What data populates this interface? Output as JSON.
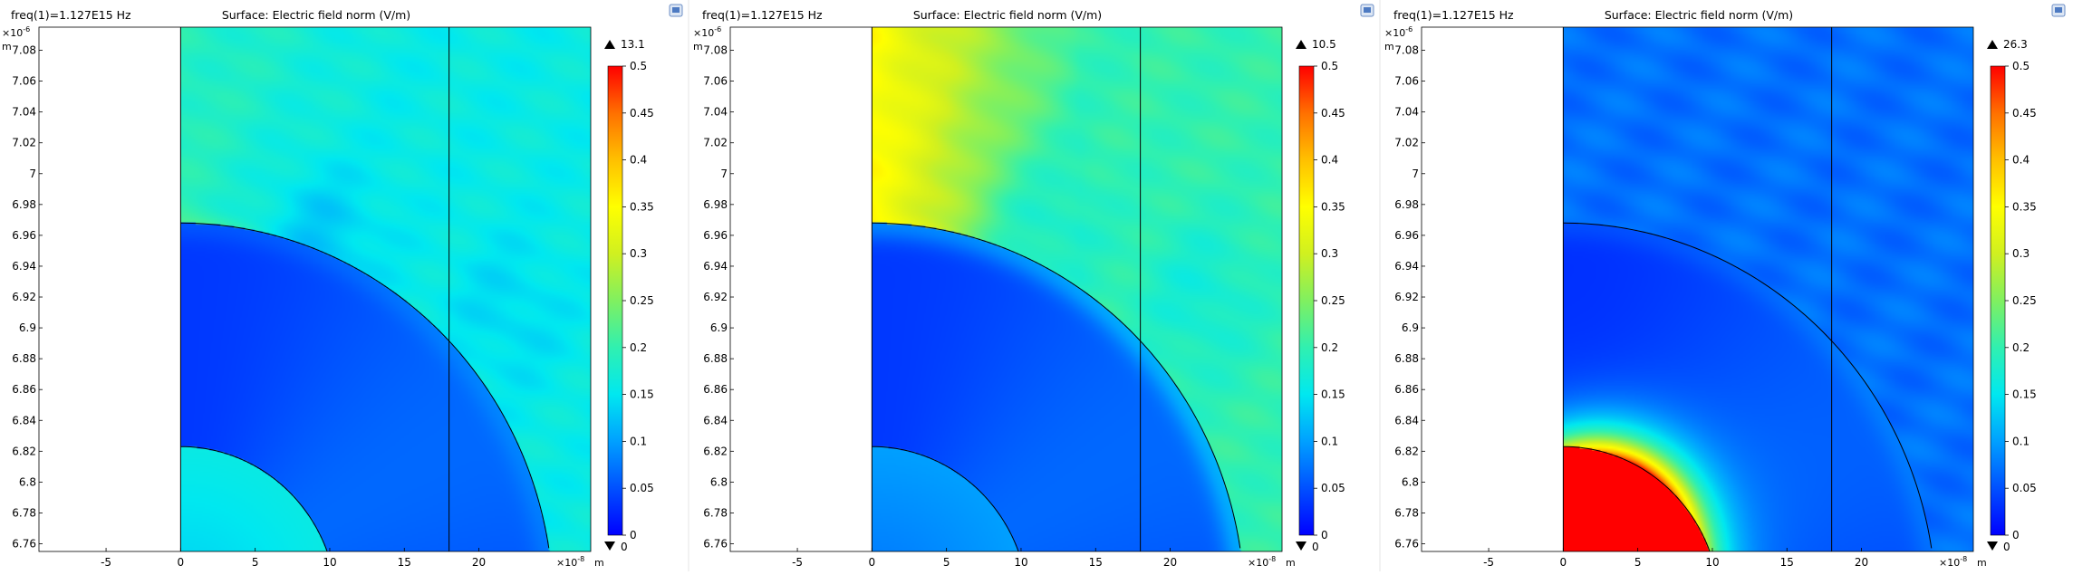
{
  "chart_data": [
    {
      "type": "heatmap",
      "header": "freq(1)=1.127E15 Hz",
      "title": "Surface: Electric field norm (V/m)",
      "x_exponent": "×10",
      "x_exponent_power": "-8",
      "x_unit": "m",
      "y_exponent": "×10",
      "y_exponent_power": "-6",
      "y_unit": "m",
      "xlim": [
        -9.5,
        27.5
      ],
      "ylim": [
        6.755,
        7.095
      ],
      "x_ticks": [
        -5,
        0,
        5,
        10,
        15,
        20
      ],
      "x_tick_labels": [
        "-5",
        "0",
        "5",
        "10",
        "15",
        "20"
      ],
      "y_ticks": [
        6.76,
        6.78,
        6.8,
        6.82,
        6.84,
        6.86,
        6.88,
        6.9,
        6.92,
        6.94,
        6.96,
        6.98,
        7.0,
        7.02,
        7.04,
        7.06,
        7.08
      ],
      "y_tick_labels": [
        "6.76",
        "6.78",
        "6.8",
        "6.82",
        "6.84",
        "6.86",
        "6.88",
        "6.9",
        "6.92",
        "6.94",
        "6.96",
        "6.98",
        "7",
        "7.02",
        "7.04",
        "7.06",
        "7.08"
      ],
      "colorbar": {
        "max_marker": "13.1",
        "min_marker": "0",
        "range": [
          0,
          0.5
        ],
        "ticks": [
          0,
          0.05,
          0.1,
          0.15,
          0.2,
          0.25,
          0.3,
          0.35,
          0.4,
          0.45,
          0.5
        ],
        "tick_labels": [
          "0",
          "0.05",
          "0.1",
          "0.15",
          "0.2",
          "0.25",
          "0.3",
          "0.35",
          "0.4",
          "0.45",
          "0.5"
        ]
      },
      "colormap": [
        "#0000ff",
        "#0050ff",
        "#00a0ff",
        "#00e8f0",
        "#30f0b0",
        "#80f060",
        "#d0f020",
        "#ffff00",
        "#ffc000",
        "#ff7000",
        "#ff0000"
      ],
      "geometry": {
        "domain_x_start": 0,
        "inner_arc_radius": 10.5,
        "outer_arc_radius": 25.0,
        "arc_center_y": 6.718,
        "vertical_line_x": 18
      },
      "field": {
        "outside_base": 0.16,
        "shell_base": 0.05,
        "core_base": 0.16,
        "hotspot": {
          "x": 0.5,
          "y": 6.945,
          "peak": 0.33
        },
        "diagonal_gradient": 0.03,
        "dark_spots": [
          {
            "x": 9,
            "y": 6.96,
            "depth": 0.04
          },
          {
            "x": 22,
            "y": 6.91,
            "depth": 0.02
          }
        ]
      }
    },
    {
      "type": "heatmap",
      "header": "freq(1)=1.127E15 Hz",
      "title": "Surface: Electric field norm (V/m)",
      "x_exponent": "×10",
      "x_exponent_power": "-8",
      "x_unit": "m",
      "y_exponent": "×10",
      "y_exponent_power": "-6",
      "y_unit": "m",
      "xlim": [
        -9.5,
        27.5
      ],
      "ylim": [
        6.755,
        7.095
      ],
      "x_ticks": [
        -5,
        0,
        5,
        10,
        15,
        20
      ],
      "x_tick_labels": [
        "-5",
        "0",
        "5",
        "10",
        "15",
        "20"
      ],
      "y_ticks": [
        6.76,
        6.78,
        6.8,
        6.82,
        6.84,
        6.86,
        6.88,
        6.9,
        6.92,
        6.94,
        6.96,
        6.98,
        7.0,
        7.02,
        7.04,
        7.06,
        7.08
      ],
      "y_tick_labels": [
        "6.76",
        "6.78",
        "6.8",
        "6.82",
        "6.84",
        "6.86",
        "6.88",
        "6.9",
        "6.92",
        "6.94",
        "6.96",
        "6.98",
        "7",
        "7.02",
        "7.04",
        "7.06",
        "7.08"
      ],
      "colorbar": {
        "max_marker": "10.5",
        "min_marker": "0",
        "range": [
          0,
          0.5
        ],
        "ticks": [
          0,
          0.05,
          0.1,
          0.15,
          0.2,
          0.25,
          0.3,
          0.35,
          0.4,
          0.45,
          0.5
        ],
        "tick_labels": [
          "0",
          "0.05",
          "0.1",
          "0.15",
          "0.2",
          "0.25",
          "0.3",
          "0.35",
          "0.4",
          "0.45",
          "0.5"
        ]
      },
      "colormap": [
        "#0000ff",
        "#0050ff",
        "#00a0ff",
        "#00e8f0",
        "#30f0b0",
        "#80f060",
        "#d0f020",
        "#ffff00",
        "#ffc000",
        "#ff7000",
        "#ff0000"
      ],
      "geometry": {
        "domain_x_start": 0,
        "inner_arc_radius": 10.5,
        "outer_arc_radius": 25.0,
        "arc_center_y": 6.718,
        "vertical_line_x": 18
      },
      "field": {
        "outside_base": 0.2,
        "shell_base": 0.05,
        "core_base": 0.1,
        "hotspot": {
          "x": 0.5,
          "y": 6.94,
          "peak": 0.45
        },
        "diagonal_gradient": 0.15,
        "dark_spots": [
          {
            "x": 10,
            "y": 6.97,
            "depth": 0.05
          },
          {
            "x": 22,
            "y": 6.92,
            "depth": 0.03
          }
        ]
      }
    },
    {
      "type": "heatmap",
      "header": "freq(1)=1.127E15 Hz",
      "title": "Surface: Electric field norm (V/m)",
      "x_exponent": "×10",
      "x_exponent_power": "-8",
      "x_unit": "m",
      "y_exponent": "×10",
      "y_exponent_power": "-6",
      "y_unit": "m",
      "xlim": [
        -9.5,
        27.5
      ],
      "ylim": [
        6.755,
        7.095
      ],
      "x_ticks": [
        -5,
        0,
        5,
        10,
        15,
        20
      ],
      "x_tick_labels": [
        "-5",
        "0",
        "5",
        "10",
        "15",
        "20"
      ],
      "y_ticks": [
        6.76,
        6.78,
        6.8,
        6.82,
        6.84,
        6.86,
        6.88,
        6.9,
        6.92,
        6.94,
        6.96,
        6.98,
        7.0,
        7.02,
        7.04,
        7.06,
        7.08
      ],
      "y_tick_labels": [
        "6.76",
        "6.78",
        "6.8",
        "6.82",
        "6.84",
        "6.86",
        "6.88",
        "6.9",
        "6.92",
        "6.94",
        "6.96",
        "6.98",
        "7",
        "7.02",
        "7.04",
        "7.06",
        "7.08"
      ],
      "colorbar": {
        "max_marker": "26.3",
        "min_marker": "0",
        "range": [
          0,
          0.5
        ],
        "ticks": [
          0,
          0.05,
          0.1,
          0.15,
          0.2,
          0.25,
          0.3,
          0.35,
          0.4,
          0.45,
          0.5
        ],
        "tick_labels": [
          "0",
          "0.05",
          "0.1",
          "0.15",
          "0.2",
          "0.25",
          "0.3",
          "0.35",
          "0.4",
          "0.45",
          "0.5"
        ]
      },
      "colormap": [
        "#0000ff",
        "#0050ff",
        "#00a0ff",
        "#00e8f0",
        "#30f0b0",
        "#80f060",
        "#d0f020",
        "#ffff00",
        "#ffc000",
        "#ff7000",
        "#ff0000"
      ],
      "geometry": {
        "domain_x_start": 0,
        "inner_arc_radius": 10.5,
        "outer_arc_radius": 25.0,
        "arc_center_y": 6.718,
        "vertical_line_x": 18
      },
      "field": {
        "outside_base": 0.07,
        "shell_base": 0.045,
        "core_base": 0.7,
        "hotspot": null,
        "diagonal_gradient": 0.0,
        "dark_spots": [],
        "core_glow": 0.35
      }
    }
  ]
}
